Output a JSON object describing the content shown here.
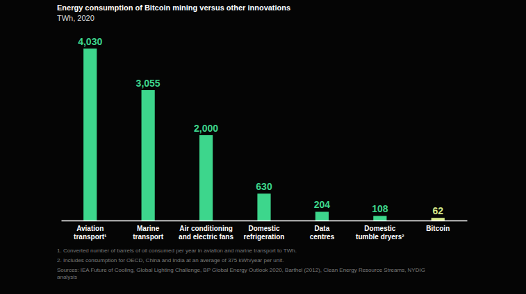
{
  "chart_data": {
    "type": "bar",
    "title": "Energy consumption of Bitcoin mining versus other innovations",
    "subtitle": "TWh, 2020",
    "categories": [
      "Aviation transport¹",
      "Marine transport",
      "Air conditioning and electric fans",
      "Domestic refrigeration",
      "Data centres",
      "Domestic tumble dryers²",
      "Bitcoin"
    ],
    "values": [
      4030,
      3055,
      2000,
      630,
      204,
      108,
      62
    ],
    "value_labels": [
      "4,030",
      "3,055",
      "2,000",
      "630",
      "204",
      "108",
      "62"
    ],
    "colors": [
      "#3dd68c",
      "#3dd68c",
      "#3dd68c",
      "#3dd68c",
      "#3dd68c",
      "#3dd68c",
      "#d6ea8a"
    ],
    "ylim": [
      0,
      4030
    ],
    "grid": false,
    "data_labels": true,
    "tick_labels": "x",
    "footnotes": [
      "1.   Converted number of barrels of oil consumed per year in aviation and marine transport to TWh.",
      "2.   Includes consumption for OECD, China and India at an average of 375 kWh/year per unit.",
      "Sources: IEA Future of Cooling, Global Lighting Challenge, BP Global Energy Outlook 2020, Barthel (2012), Clean Energy Resource Streams, NYDIG analysis"
    ]
  }
}
